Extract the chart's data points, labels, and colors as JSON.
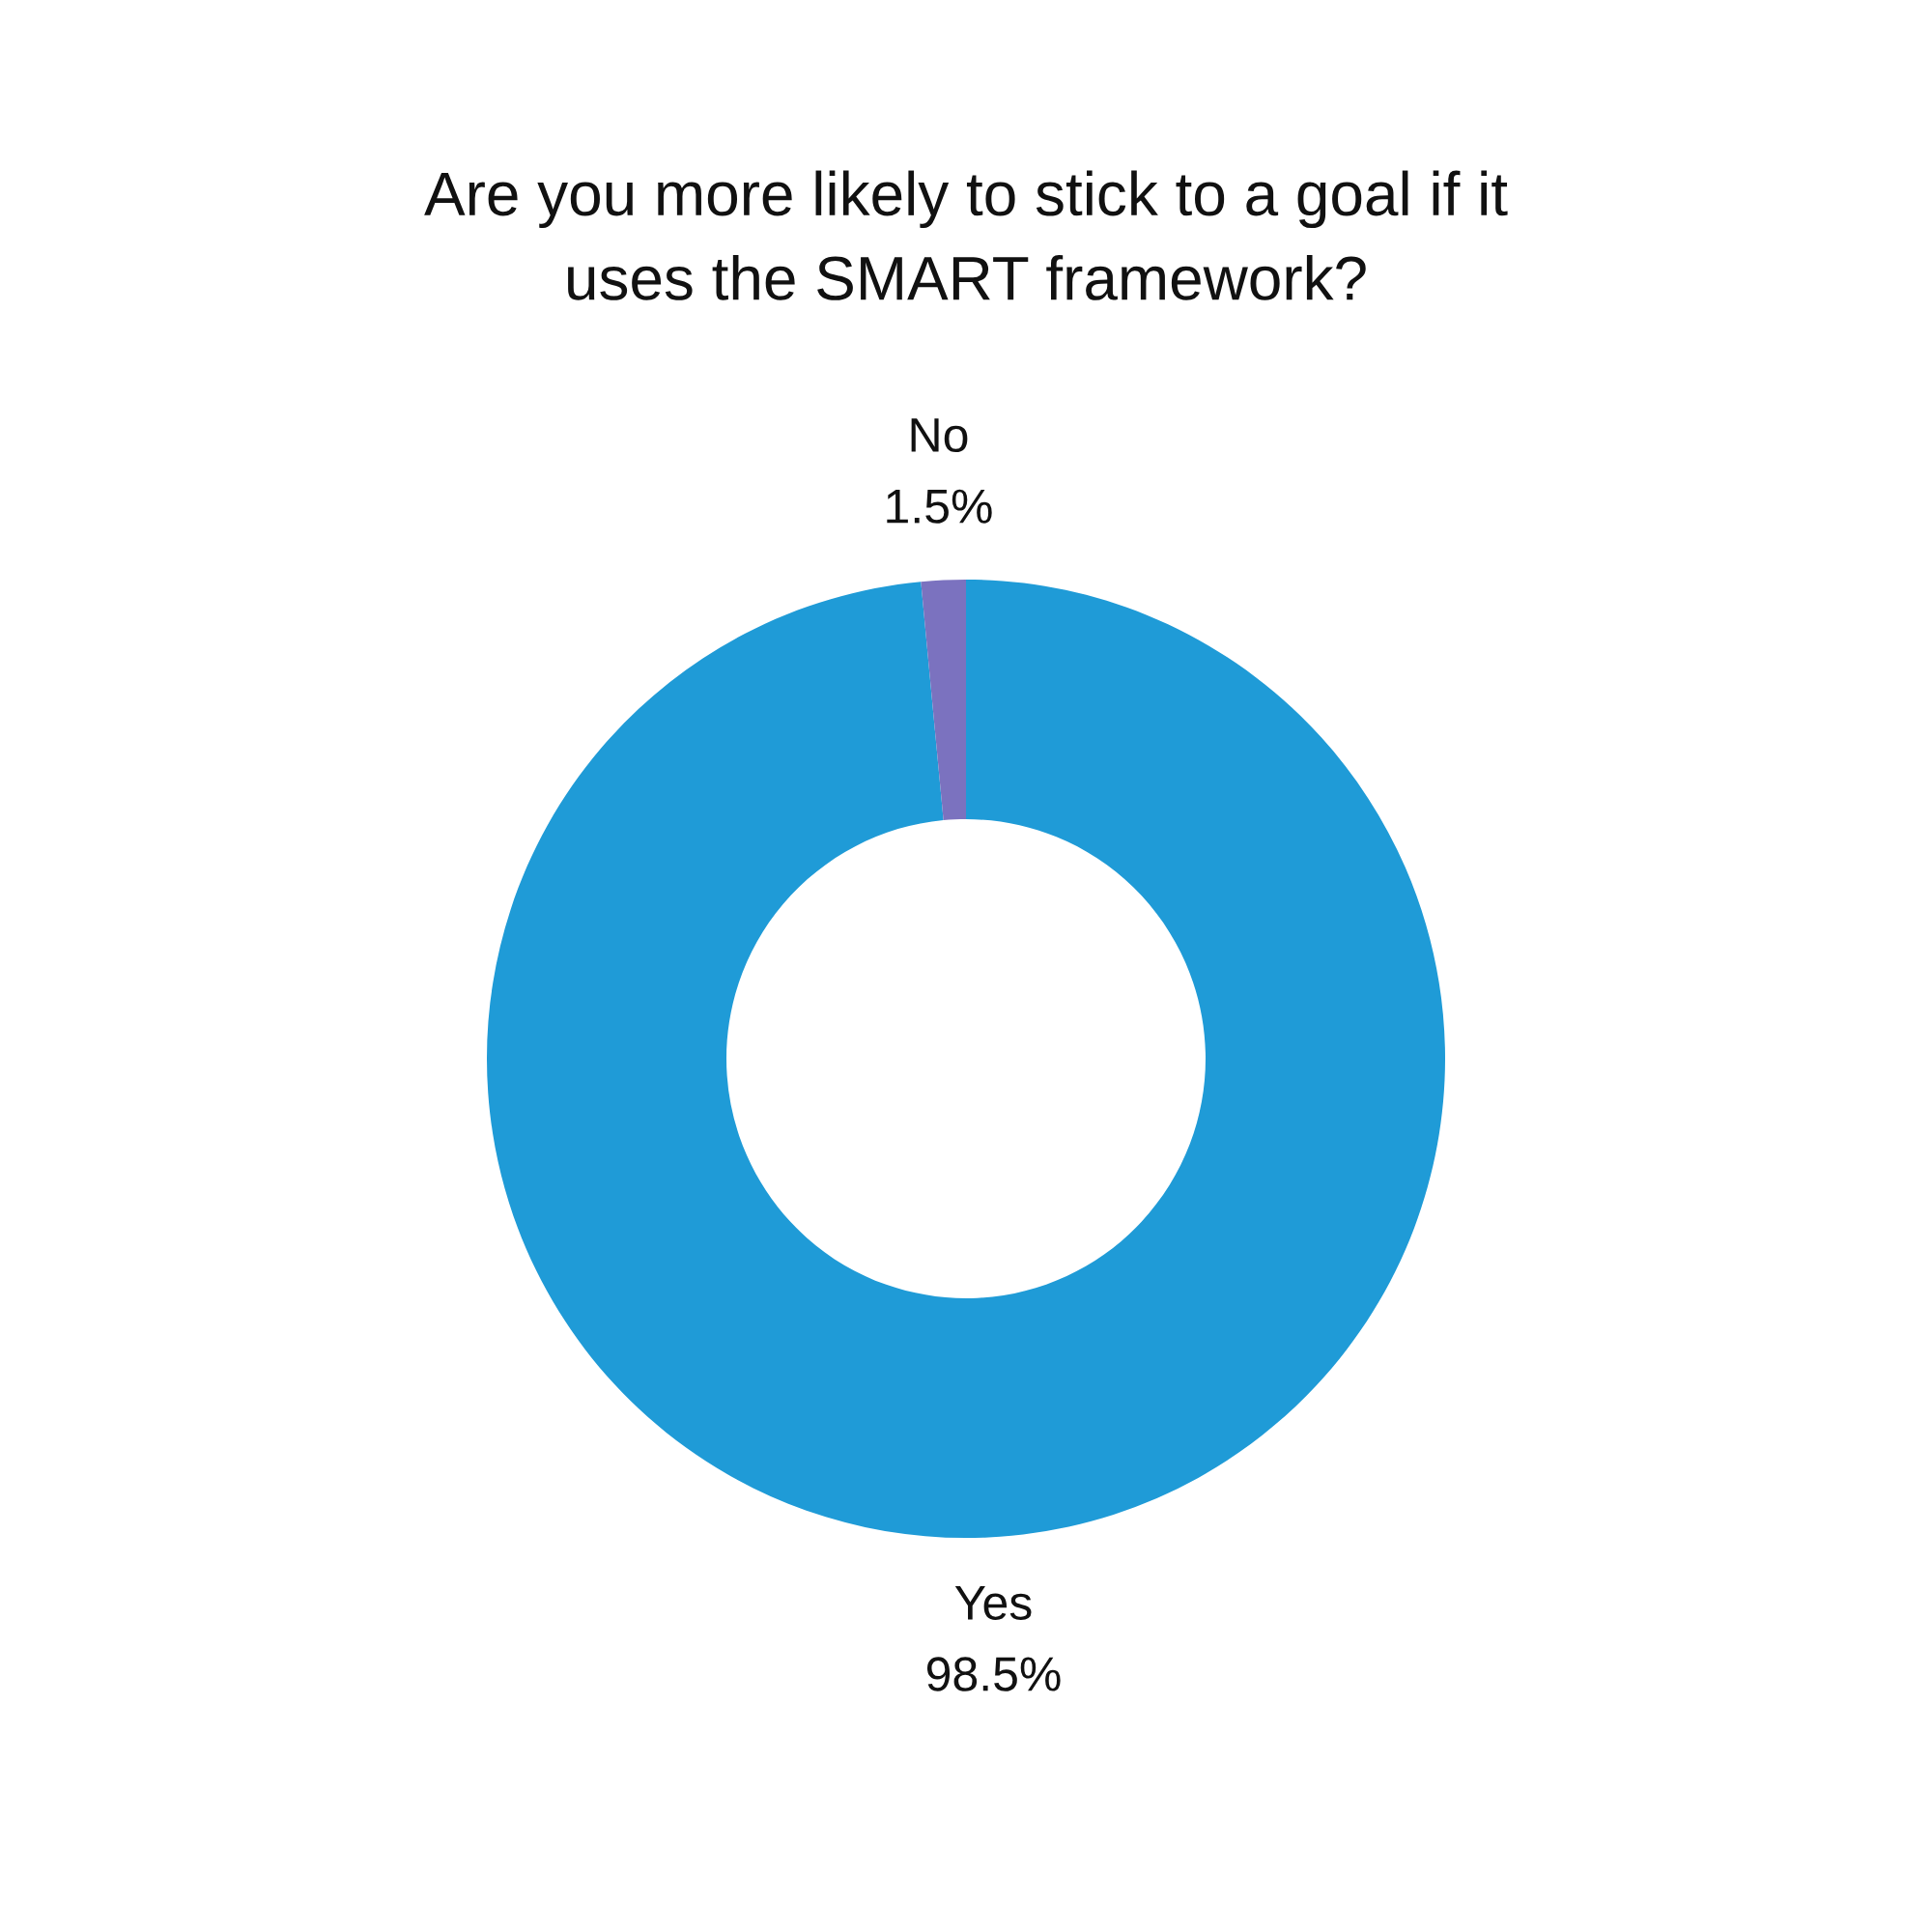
{
  "chart_data": {
    "type": "donut",
    "title": "Are you more likely to stick to a goal if it\nuses the SMART framework?",
    "categories": [
      "Yes",
      "No"
    ],
    "values": [
      98.5,
      1.5
    ],
    "value_labels": [
      "98.5%",
      "1.5%"
    ],
    "colors": [
      "#1f9bd7",
      "#7b72bf"
    ]
  }
}
